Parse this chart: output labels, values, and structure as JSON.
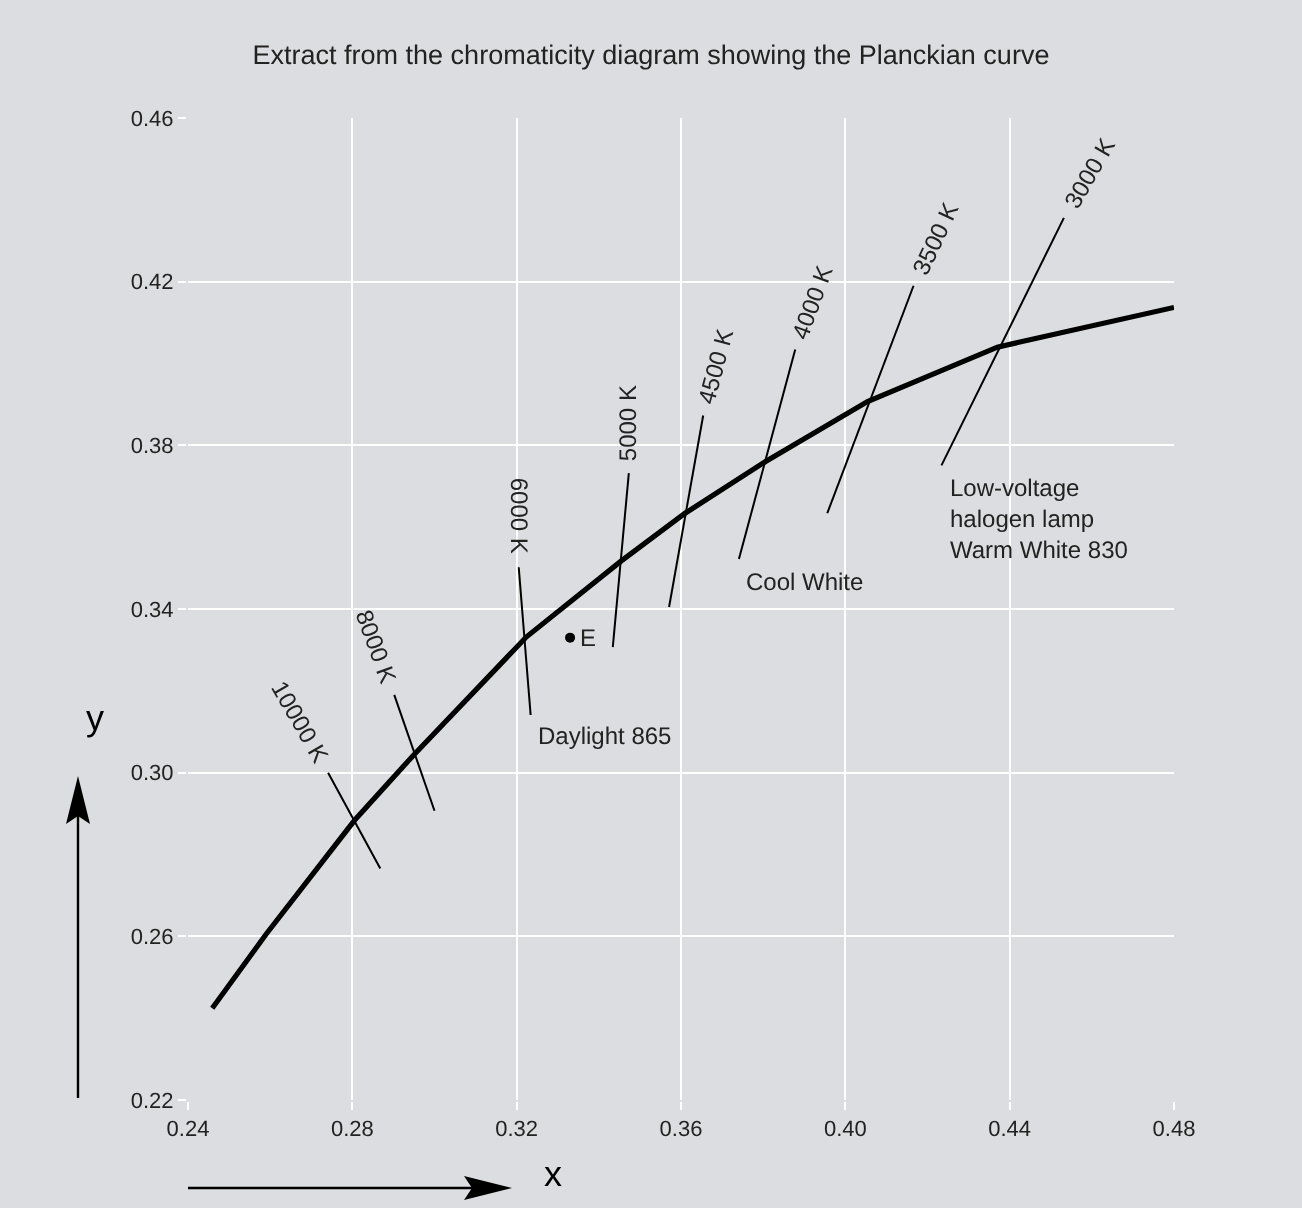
{
  "chart_data": {
    "type": "line",
    "title": "Extract from the chromaticity diagram showing the Planckian curve",
    "xlabel": "x",
    "ylabel": "y",
    "xlim": [
      0.24,
      0.48
    ],
    "xticks": [
      {
        "value": 0.24,
        "label": "0.24"
      },
      {
        "value": 0.28,
        "label": "0.28"
      },
      {
        "value": 0.32,
        "label": "0.32"
      },
      {
        "value": 0.36,
        "label": "0.36"
      },
      {
        "value": 0.4,
        "label": "0.40"
      },
      {
        "value": 0.44,
        "label": "0.44"
      },
      {
        "value": 0.48,
        "label": "0.48"
      }
    ],
    "ylim": [
      0.22,
      0.46
    ],
    "yticks": [
      {
        "value": 0.22,
        "label": "0.22"
      },
      {
        "value": 0.26,
        "label": "0.26"
      },
      {
        "value": 0.3,
        "label": "0.30"
      },
      {
        "value": 0.34,
        "label": "0.34"
      },
      {
        "value": 0.38,
        "label": "0.38"
      },
      {
        "value": 0.42,
        "label": "0.42"
      },
      {
        "value": 0.46,
        "label": "0.46"
      }
    ],
    "grid": true,
    "marker": "none",
    "line_style": "solid",
    "series": [
      {
        "color": "#000000",
        "x": [
          0.2459,
          0.259,
          0.2805,
          0.295,
          0.3224,
          0.3454,
          0.361,
          0.3805,
          0.4054,
          0.437,
          0.48
        ],
        "values": [
          0.2424,
          0.2605,
          0.2883,
          0.3044,
          0.3332,
          0.3517,
          0.3634,
          0.376,
          0.3907,
          0.404,
          0.4137
        ]
      },
      {
        "color": "#000000",
        "x": [
          0.2741,
          0.2868
        ],
        "values": [
          0.3,
          0.2766
        ]
      },
      {
        "color": "#000000",
        "x": [
          0.2902,
          0.3
        ],
        "values": [
          0.319,
          0.2907
        ]
      },
      {
        "color": "#000000",
        "x": [
          0.3205,
          0.3234
        ],
        "values": [
          0.3502,
          0.3141
        ]
      },
      {
        "color": "#000000",
        "x": [
          0.3473,
          0.3434
        ],
        "values": [
          0.3732,
          0.3307
        ]
      },
      {
        "color": "#000000",
        "x": [
          0.3654,
          0.3571
        ],
        "values": [
          0.3873,
          0.3405
        ]
      },
      {
        "color": "#000000",
        "x": [
          0.3878,
          0.3741
        ],
        "values": [
          0.4034,
          0.3522
        ]
      },
      {
        "color": "#000000",
        "x": [
          0.4166,
          0.3956
        ],
        "values": [
          0.419,
          0.3634
        ]
      },
      {
        "color": "#000000",
        "x": [
          0.4532,
          0.4234
        ],
        "values": [
          0.4356,
          0.3751
        ]
      },
      {
        "type": "scatter",
        "marker": "circle",
        "color": "#000000",
        "x": [
          0.333
        ],
        "values": [
          0.333
        ]
      }
    ],
    "annotations": [
      {
        "text": "10000 K",
        "x": 0.2741,
        "y": 0.3
      },
      {
        "text": "8000 K",
        "x": 0.2902,
        "y": 0.319
      },
      {
        "text": "6000 K",
        "x": 0.3205,
        "y": 0.3502
      },
      {
        "text": "5000 K",
        "x": 0.3473,
        "y": 0.3732
      },
      {
        "text": "4500 K",
        "x": 0.3654,
        "y": 0.3873
      },
      {
        "text": "4000 K",
        "x": 0.3878,
        "y": 0.4034
      },
      {
        "text": "3500 K",
        "x": 0.4166,
        "y": 0.419
      },
      {
        "text": "3000 K",
        "x": 0.4532,
        "y": 0.4356
      },
      {
        "text": "E",
        "x": 0.333,
        "y": 0.333
      },
      {
        "text": "Daylight 865",
        "x": 0.3234,
        "y": 0.3141
      },
      {
        "text": "Cool White",
        "x": 0.3741,
        "y": 0.3522
      },
      {
        "text": "Low-voltage\nhalogen lamp\nWarm White 830",
        "x": 0.4234,
        "y": 0.3751
      }
    ]
  }
}
